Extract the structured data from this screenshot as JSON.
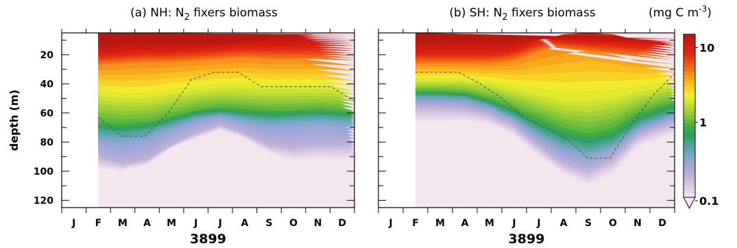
{
  "chart_data": {
    "type": "heatmap",
    "units_label": "(mg C m",
    "units_exp": "-3",
    "units_close": ")",
    "colorbar": {
      "scale": "log",
      "range": [
        0.1,
        15
      ],
      "labels": [
        {
          "value": 10,
          "text": "10"
        },
        {
          "value": 1,
          "text": "1"
        },
        {
          "value": 0.1,
          "text": "0.1"
        }
      ],
      "stops": [
        "#f3e6ef",
        "#dccde6",
        "#c4b3da",
        "#a3a8d8",
        "#7fa6cc",
        "#52a6a0",
        "#2e9e5e",
        "#46ad3e",
        "#86c73b",
        "#c2dc34",
        "#f1ef2e",
        "#f9c322",
        "#f6951c",
        "#ee5d16",
        "#e02a12",
        "#d11b10",
        "#b8170f"
      ]
    },
    "panels": [
      {
        "id": "nh",
        "title_prefix": "(a) NH: N",
        "title_sub": "2",
        "title_suffix": " fixers biomass",
        "xlabel": "3899",
        "ylabel": "depth (m)",
        "x_ticks": [
          "J",
          "F",
          "M",
          "A",
          "M",
          "J",
          "J",
          "A",
          "S",
          "O",
          "N",
          "D"
        ],
        "y_ticks": [
          20,
          40,
          60,
          80,
          100,
          120
        ],
        "ylim": [
          5,
          125
        ],
        "data_start_month": 2,
        "thresholds": [
          15,
          10,
          5,
          2,
          1,
          0.5,
          0.3,
          0.2,
          0.1
        ],
        "contours": {
          "15": [
            12,
            12,
            12,
            12,
            12,
            12,
            10,
            8,
            7,
            6,
            6,
            7
          ],
          "10": [
            19,
            18,
            17,
            17,
            16,
            15,
            14,
            14,
            14,
            14,
            14,
            15
          ],
          "5": [
            27,
            26,
            25,
            25,
            24,
            23,
            22,
            23,
            23,
            23,
            24,
            26
          ],
          "2": [
            48,
            50,
            50,
            47,
            45,
            43,
            43,
            44,
            44,
            44,
            45,
            48
          ],
          "1": [
            66,
            67,
            66,
            62,
            58,
            56,
            57,
            58,
            58,
            57,
            59,
            64
          ],
          "0.5": [
            73,
            74,
            72,
            67,
            62,
            60,
            62,
            64,
            63,
            62,
            64,
            70
          ],
          "0.3": [
            80,
            82,
            79,
            72,
            66,
            63,
            67,
            70,
            69,
            68,
            70,
            76
          ],
          "0.2": [
            90,
            95,
            92,
            82,
            74,
            68,
            74,
            82,
            84,
            82,
            82,
            88
          ],
          "0.1": [
            99,
            100,
            96,
            84,
            78,
            72,
            78,
            88,
            93,
            92,
            93,
            94
          ]
        },
        "mld": [
          63,
          76,
          76,
          60,
          37,
          32,
          32,
          42,
          42,
          42,
          42,
          52
        ]
      },
      {
        "id": "sh",
        "title_prefix": "(b) SH: N",
        "title_sub": "2",
        "title_suffix": " fixers biomass",
        "xlabel": "3899",
        "ylabel": "",
        "x_ticks": [
          "J",
          "F",
          "M",
          "A",
          "M",
          "J",
          "J",
          "A",
          "S",
          "O",
          "N",
          "D"
        ],
        "y_ticks": [
          20,
          40,
          60,
          80,
          100,
          120
        ],
        "ylim": [
          5,
          125
        ],
        "data_start_month": 2,
        "thresholds": [
          15,
          10,
          5,
          2,
          1,
          0.5,
          0.3,
          0.2,
          0.1
        ],
        "contours": {
          "15": [
            10,
            10,
            10,
            10,
            10,
            9,
            8,
            8,
            8,
            9,
            9,
            9
          ],
          "10": [
            18,
            18,
            18,
            18,
            16,
            10,
            6,
            5,
            6,
            10,
            14,
            16
          ],
          "5": [
            26,
            26,
            26,
            26,
            24,
            18,
            13,
            10,
            14,
            20,
            24,
            24
          ],
          "2": [
            38,
            38,
            38,
            40,
            44,
            48,
            52,
            52,
            50,
            46,
            40,
            36
          ],
          "1": [
            45,
            45,
            46,
            50,
            56,
            63,
            70,
            74,
            70,
            60,
            52,
            46
          ],
          "0.5": [
            48,
            48,
            49,
            54,
            62,
            72,
            80,
            84,
            80,
            68,
            58,
            50
          ],
          "0.3": [
            52,
            52,
            53,
            57,
            65,
            77,
            87,
            91,
            85,
            72,
            62,
            54
          ],
          "0.2": [
            56,
            56,
            57,
            61,
            69,
            83,
            95,
            100,
            92,
            76,
            66,
            58
          ],
          "0.1": [
            67,
            67,
            66,
            68,
            76,
            90,
            102,
            110,
            102,
            84,
            74,
            67
          ]
        },
        "mld": [
          32,
          32,
          32,
          40,
          50,
          63,
          70,
          78,
          91,
          91,
          68,
          48,
          33
        ]
      }
    ]
  }
}
